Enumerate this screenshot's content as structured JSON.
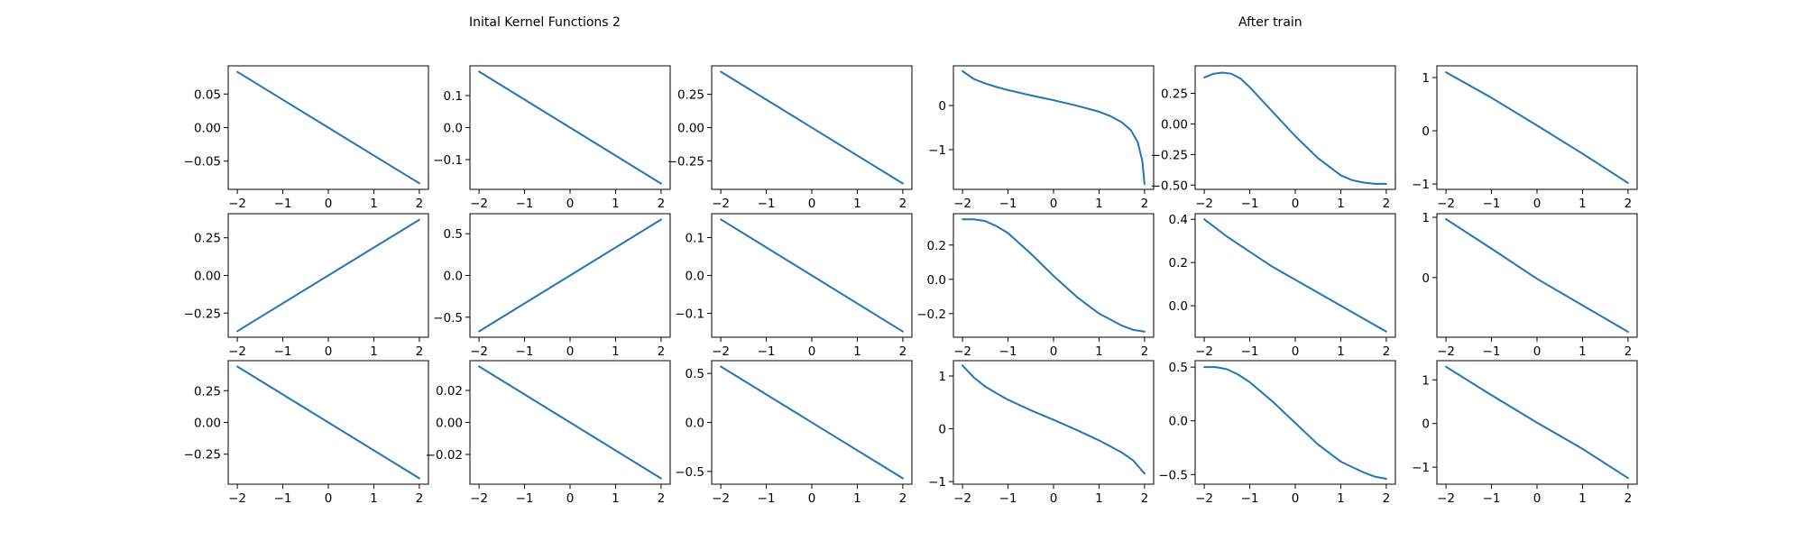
{
  "titles": {
    "left": "Inital Kernel Functions 2",
    "right": "After train"
  },
  "style": {
    "line_color": "#1f77b4"
  },
  "grid": {
    "rows": 3,
    "cols": 6
  },
  "chart_data": [
    {
      "type": "line",
      "x": [
        -2,
        2
      ],
      "y": [
        0.083,
        -0.083
      ],
      "xlim": [
        -2.2,
        2.2
      ],
      "ylim": [
        -0.092,
        0.092
      ],
      "xticks": [
        -2,
        -1,
        0,
        1,
        2
      ],
      "yticks": [
        0.05,
        0.0,
        -0.05
      ],
      "ytick_labels": [
        "0.05",
        "0.00",
        "−0.05"
      ]
    },
    {
      "type": "line",
      "x": [
        -2,
        2
      ],
      "y": [
        0.175,
        -0.175
      ],
      "xlim": [
        -2.2,
        2.2
      ],
      "ylim": [
        -0.193,
        0.193
      ],
      "xticks": [
        -2,
        -1,
        0,
        1,
        2
      ],
      "yticks": [
        0.1,
        0.0,
        -0.1
      ],
      "ytick_labels": [
        "0.1",
        "0.0",
        "−0.1"
      ]
    },
    {
      "type": "line",
      "x": [
        -2,
        2
      ],
      "y": [
        0.42,
        -0.42
      ],
      "xlim": [
        -2.2,
        2.2
      ],
      "ylim": [
        -0.464,
        0.464
      ],
      "xticks": [
        -2,
        -1,
        0,
        1,
        2
      ],
      "yticks": [
        0.25,
        0.0,
        -0.25
      ],
      "ytick_labels": [
        "0.25",
        "0.00",
        "−0.25"
      ]
    },
    {
      "type": "line",
      "x": [
        -2,
        -1.75,
        -1.5,
        -1.25,
        -1,
        -0.5,
        0,
        0.5,
        1,
        1.25,
        1.5,
        1.7,
        1.85,
        1.95,
        2
      ],
      "y": [
        0.78,
        0.6,
        0.5,
        0.42,
        0.35,
        0.23,
        0.12,
        0.0,
        -0.14,
        -0.24,
        -0.38,
        -0.56,
        -0.83,
        -1.25,
        -1.78
      ],
      "xlim": [
        -2.2,
        2.2
      ],
      "ylim": [
        -1.9,
        0.9
      ],
      "xticks": [
        -2,
        -1,
        0,
        1,
        2
      ],
      "yticks": [
        0,
        -1
      ],
      "ytick_labels": [
        "0",
        "−1"
      ]
    },
    {
      "type": "line",
      "x": [
        -2,
        -1.8,
        -1.6,
        -1.4,
        -1.2,
        -1,
        -0.5,
        0,
        0.5,
        1,
        1.25,
        1.5,
        1.75,
        2
      ],
      "y": [
        0.38,
        0.41,
        0.42,
        0.41,
        0.37,
        0.3,
        0.1,
        -0.1,
        -0.28,
        -0.42,
        -0.46,
        -0.48,
        -0.49,
        -0.49
      ],
      "xlim": [
        -2.2,
        2.2
      ],
      "ylim": [
        -0.535,
        0.475
      ],
      "xticks": [
        -2,
        -1,
        0,
        1,
        2
      ],
      "yticks": [
        0.25,
        0.0,
        -0.25,
        -0.5
      ],
      "ytick_labels": [
        "0.25",
        "0.00",
        "−0.25",
        "−0.50"
      ]
    },
    {
      "type": "line",
      "x": [
        -2,
        -1,
        0,
        1,
        2
      ],
      "y": [
        1.1,
        0.62,
        0.1,
        -0.43,
        -0.98
      ],
      "xlim": [
        -2.2,
        2.2
      ],
      "ylim": [
        -1.1,
        1.22
      ],
      "xticks": [
        -2,
        -1,
        0,
        1,
        2
      ],
      "yticks": [
        1,
        0,
        -1
      ],
      "ytick_labels": [
        "1",
        "0",
        "−1"
      ]
    },
    {
      "type": "line",
      "x": [
        -2,
        2
      ],
      "y": [
        -0.37,
        0.37
      ],
      "xlim": [
        -2.2,
        2.2
      ],
      "ylim": [
        -0.41,
        0.41
      ],
      "xticks": [
        -2,
        -1,
        0,
        1,
        2
      ],
      "yticks": [
        0.25,
        0.0,
        -0.25
      ],
      "ytick_labels": [
        "0.25",
        "0.00",
        "−0.25"
      ]
    },
    {
      "type": "line",
      "x": [
        -2,
        2
      ],
      "y": [
        -0.67,
        0.67
      ],
      "xlim": [
        -2.2,
        2.2
      ],
      "ylim": [
        -0.74,
        0.74
      ],
      "xticks": [
        -2,
        -1,
        0,
        1,
        2
      ],
      "yticks": [
        0.5,
        0.0,
        -0.5
      ],
      "ytick_labels": [
        "0.5",
        "0.0",
        "−0.5"
      ]
    },
    {
      "type": "line",
      "x": [
        -2,
        2
      ],
      "y": [
        0.148,
        -0.148
      ],
      "xlim": [
        -2.2,
        2.2
      ],
      "ylim": [
        -0.163,
        0.163
      ],
      "xticks": [
        -2,
        -1,
        0,
        1,
        2
      ],
      "yticks": [
        0.1,
        0.0,
        -0.1
      ],
      "ytick_labels": [
        "0.1",
        "0.0",
        "−0.1"
      ]
    },
    {
      "type": "line",
      "x": [
        -2,
        -1.75,
        -1.5,
        -1.25,
        -1,
        -0.5,
        0,
        0.5,
        1,
        1.5,
        1.75,
        2
      ],
      "y": [
        0.35,
        0.35,
        0.34,
        0.31,
        0.27,
        0.15,
        0.02,
        -0.1,
        -0.2,
        -0.27,
        -0.295,
        -0.305
      ],
      "xlim": [
        -2.2,
        2.2
      ],
      "ylim": [
        -0.338,
        0.383
      ],
      "xticks": [
        -2,
        -1,
        0,
        1,
        2
      ],
      "yticks": [
        0.2,
        0.0,
        -0.2
      ],
      "ytick_labels": [
        "0.2",
        "0.0",
        "−0.2"
      ]
    },
    {
      "type": "line",
      "x": [
        -2,
        -1.5,
        -1,
        -0.5,
        0,
        0.5,
        1,
        1.5,
        2
      ],
      "y": [
        0.4,
        0.32,
        0.25,
        0.18,
        0.12,
        0.06,
        0.0,
        -0.06,
        -0.12
      ],
      "xlim": [
        -2.2,
        2.2
      ],
      "ylim": [
        -0.146,
        0.426
      ],
      "xticks": [
        -2,
        -1,
        0,
        1,
        2
      ],
      "yticks": [
        0.4,
        0.2,
        0.0
      ],
      "ytick_labels": [
        "0.4",
        "0.2",
        "0.0"
      ]
    },
    {
      "type": "line",
      "x": [
        -2,
        -1,
        0,
        1,
        2
      ],
      "y": [
        0.97,
        0.48,
        -0.02,
        -0.46,
        -0.9
      ],
      "xlim": [
        -2.2,
        2.2
      ],
      "ylim": [
        -0.99,
        1.06
      ],
      "xticks": [
        -2,
        -1,
        0,
        1,
        2
      ],
      "yticks": [
        1,
        0
      ],
      "ytick_labels": [
        "1",
        "0"
      ]
    },
    {
      "type": "line",
      "x": [
        -2,
        2
      ],
      "y": [
        0.44,
        -0.44
      ],
      "xlim": [
        -2.2,
        2.2
      ],
      "ylim": [
        -0.486,
        0.486
      ],
      "xticks": [
        -2,
        -1,
        0,
        1,
        2
      ],
      "yticks": [
        0.25,
        0.0,
        -0.25
      ],
      "ytick_labels": [
        "0.25",
        "0.00",
        "−0.25"
      ]
    },
    {
      "type": "line",
      "x": [
        -2,
        2
      ],
      "y": [
        0.035,
        -0.035
      ],
      "xlim": [
        -2.2,
        2.2
      ],
      "ylim": [
        -0.0386,
        0.0386
      ],
      "xticks": [
        -2,
        -1,
        0,
        1,
        2
      ],
      "yticks": [
        0.02,
        0.0,
        -0.02
      ],
      "ytick_labels": [
        "0.02",
        "0.00",
        "−0.02"
      ]
    },
    {
      "type": "line",
      "x": [
        -2,
        2
      ],
      "y": [
        0.57,
        -0.57
      ],
      "xlim": [
        -2.2,
        2.2
      ],
      "ylim": [
        -0.63,
        0.63
      ],
      "xticks": [
        -2,
        -1,
        0,
        1,
        2
      ],
      "yticks": [
        0.5,
        0.0,
        -0.5
      ],
      "ytick_labels": [
        "0.5",
        "0.0",
        "−0.5"
      ]
    },
    {
      "type": "line",
      "x": [
        -2,
        -1.75,
        -1.5,
        -1.25,
        -1,
        -0.5,
        0,
        0.5,
        1,
        1.5,
        1.75,
        2
      ],
      "y": [
        1.2,
        0.97,
        0.8,
        0.67,
        0.55,
        0.35,
        0.17,
        -0.02,
        -0.22,
        -0.45,
        -0.6,
        -0.85
      ],
      "xlim": [
        -2.2,
        2.2
      ],
      "ylim": [
        -1.05,
        1.29
      ],
      "xticks": [
        -2,
        -1,
        0,
        1,
        2
      ],
      "yticks": [
        1,
        0,
        -1
      ],
      "ytick_labels": [
        "1",
        "0",
        "−1"
      ]
    },
    {
      "type": "line",
      "x": [
        -2,
        -1.75,
        -1.5,
        -1.25,
        -1,
        -0.5,
        0,
        0.5,
        1,
        1.5,
        1.75,
        2
      ],
      "y": [
        0.5,
        0.5,
        0.48,
        0.43,
        0.36,
        0.18,
        -0.02,
        -0.22,
        -0.38,
        -0.48,
        -0.52,
        -0.54
      ],
      "xlim": [
        -2.2,
        2.2
      ],
      "ylim": [
        -0.59,
        0.56
      ],
      "xticks": [
        -2,
        -1,
        0,
        1,
        2
      ],
      "yticks": [
        0.5,
        0.0,
        -0.5
      ],
      "ytick_labels": [
        "0.5",
        "0.0",
        "−0.5"
      ]
    },
    {
      "type": "line",
      "x": [
        -2,
        -1,
        0,
        1,
        2
      ],
      "y": [
        1.3,
        0.65,
        0.02,
        -0.58,
        -1.25
      ],
      "xlim": [
        -2.2,
        2.2
      ],
      "ylim": [
        -1.39,
        1.44
      ],
      "xticks": [
        -2,
        -1,
        0,
        1,
        2
      ],
      "yticks": [
        1,
        0,
        -1
      ],
      "ytick_labels": [
        "1",
        "0",
        "−1"
      ]
    }
  ]
}
